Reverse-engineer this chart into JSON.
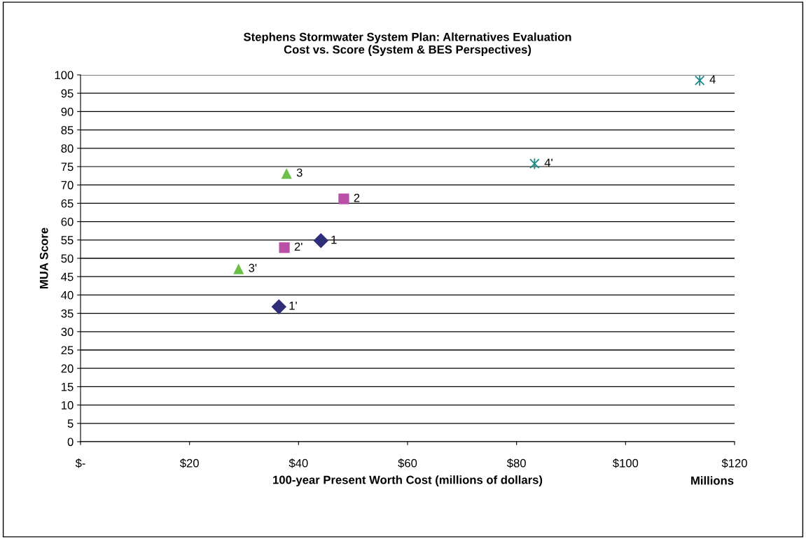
{
  "chart_data": {
    "type": "scatter",
    "title": "Stephens Stormwater System Plan: Alternatives Evaluation\nCost vs. Score (System & BES Perspectives)",
    "xlabel": "100-year Present Worth Cost (millions of dollars)",
    "ylabel": "MUA Score",
    "annotations": [
      "Millions"
    ],
    "series": [
      {
        "name": "1",
        "color": "#2e2e7a",
        "marker": "diamond",
        "x": [
          44.1
        ],
        "values": [
          54.8
        ]
      },
      {
        "name": "1'",
        "color": "#2e2e7a",
        "marker": "diamond",
        "x": [
          36.4
        ],
        "values": [
          36.8
        ]
      },
      {
        "name": "2",
        "color": "#b94fa6",
        "marker": "square",
        "x": [
          48.3
        ],
        "values": [
          66.2
        ]
      },
      {
        "name": "2'",
        "color": "#b94fa6",
        "marker": "square",
        "x": [
          37.4
        ],
        "values": [
          52.9
        ]
      },
      {
        "name": "3",
        "color": "#6cc04a",
        "marker": "triangle",
        "x": [
          37.8
        ],
        "values": [
          73.1
        ]
      },
      {
        "name": "3'",
        "color": "#6cc04a",
        "marker": "triangle",
        "x": [
          29.0
        ],
        "values": [
          47.1
        ]
      },
      {
        "name": "4",
        "color": "#1a8a8a",
        "marker": "cross",
        "x": [
          113.6
        ],
        "values": [
          98.5
        ]
      },
      {
        "name": "4'",
        "color": "#1a8a8a",
        "marker": "cross",
        "x": [
          83.3
        ],
        "values": [
          75.8
        ]
      }
    ],
    "xlim": [
      0,
      120
    ],
    "xticks": [
      {
        "value": 0,
        "label": "$-"
      },
      {
        "value": 20,
        "label": "$20"
      },
      {
        "value": 40,
        "label": "$40"
      },
      {
        "value": 60,
        "label": "$60"
      },
      {
        "value": 80,
        "label": "$80"
      },
      {
        "value": 100,
        "label": "$100"
      },
      {
        "value": 120,
        "label": "$120"
      }
    ],
    "ylim": [
      0,
      100
    ],
    "yticks": [
      0,
      5,
      10,
      15,
      20,
      25,
      30,
      35,
      40,
      45,
      50,
      55,
      60,
      65,
      70,
      75,
      80,
      85,
      90,
      95,
      100
    ],
    "grid": "y",
    "legend": false
  }
}
